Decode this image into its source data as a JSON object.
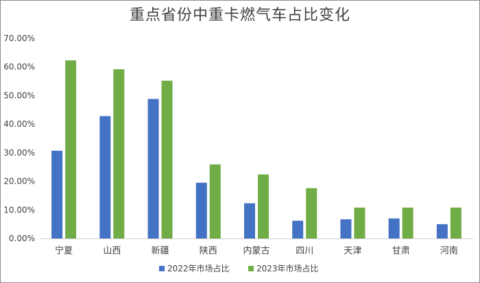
{
  "chart_data": {
    "type": "bar",
    "title": "重点省份中重卡燃气车占比变化",
    "categories": [
      "宁夏",
      "山西",
      "新疆",
      "陕西",
      "内蒙古",
      "四川",
      "天津",
      "甘肃",
      "河南"
    ],
    "series": [
      {
        "name": "2022年市场占比",
        "color": "#4472c4",
        "values": [
          30.7,
          42.8,
          48.8,
          19.5,
          12.3,
          6.2,
          6.7,
          7.0,
          5.0
        ]
      },
      {
        "name": "2023年市场占比",
        "color": "#70ad47",
        "values": [
          62.3,
          59.2,
          55.2,
          25.9,
          22.4,
          17.6,
          10.8,
          10.8,
          10.8
        ]
      }
    ],
    "yticks": [
      "0.00%",
      "10.00%",
      "20.00%",
      "30.00%",
      "40.00%",
      "50.00%",
      "60.00%",
      "70.00%"
    ],
    "ylim": [
      0,
      70
    ],
    "xlabel": "",
    "ylabel": "",
    "grid": false,
    "legend": "bottom"
  }
}
